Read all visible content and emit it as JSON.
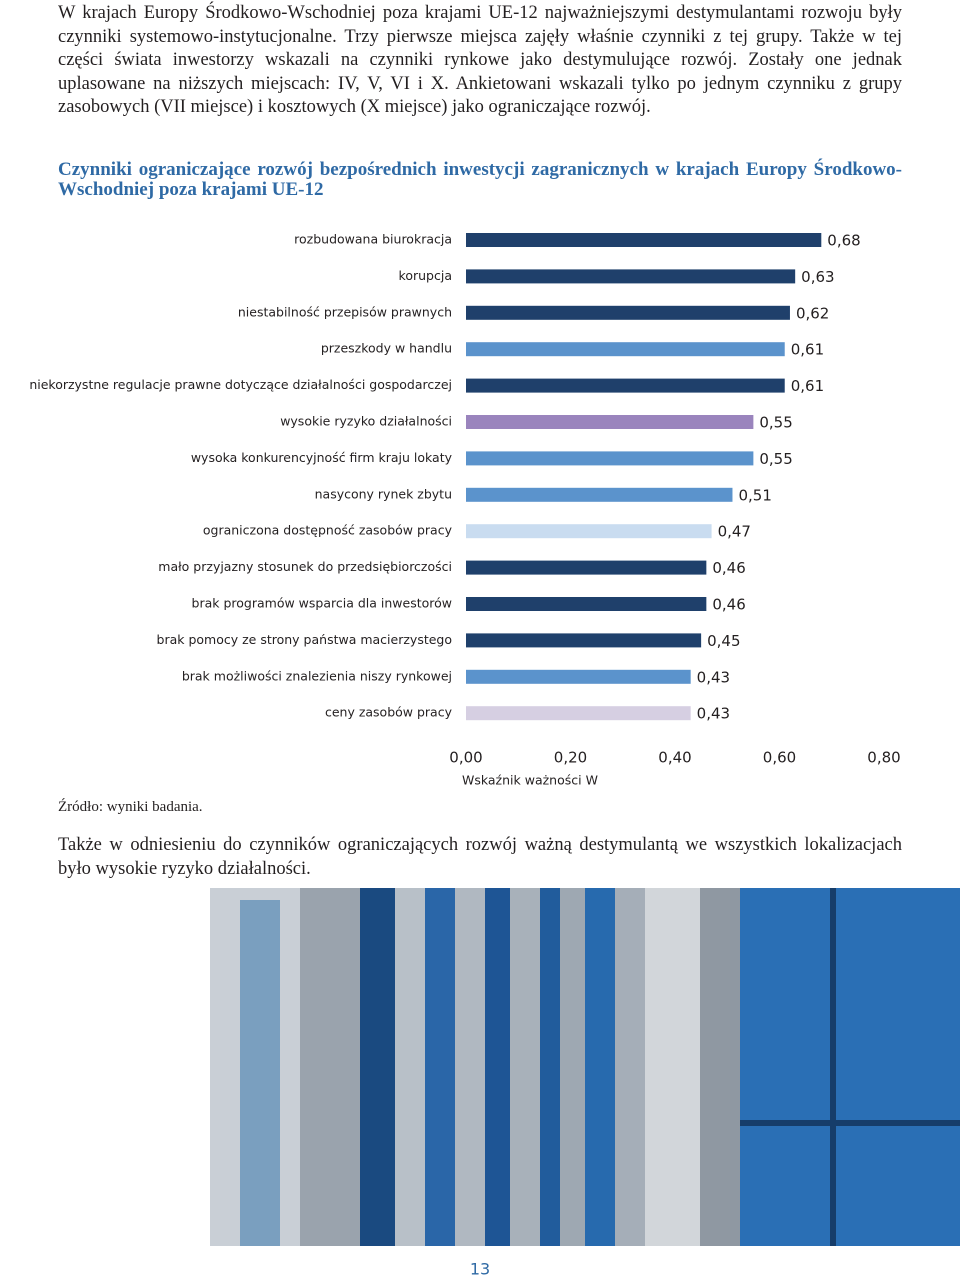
{
  "paragraph_1": "W krajach Europy Środkowo-Wschodniej poza krajami UE-12 najważniejszymi destymulantami rozwoju były czynniki systemowo-instytucjonalne. Trzy pierwsze miejsca zajęły właśnie czynniki z tej grupy. Także w tej części świata inwestorzy wskazali na czynniki rynkowe jako destymulujące rozwój. Zostały one jednak uplasowane na niższych miejscach: IV, V, VI i X. Ankietowani wskazali tylko po jednym czynniku z grupy zasobowych (VII miejsce) i kosztowych (X miejsce) jako ograniczające rozwój.",
  "chart_data": {
    "type": "hbar",
    "title": "Czynniki ograniczające rozwój bezpośrednich inwestycji zagranicznych w krajach Europy Środkowo-Wschodniej poza krajami UE-12",
    "categories": [
      "rozbudowana biurokracja",
      "korupcja",
      "niestabilność przepisów prawnych",
      "przeszkody w handlu",
      "niekorzystne regulacje prawne dotyczące działalności gospodarczej",
      "wysokie ryzyko działalności",
      "wysoka konkurencyjność firm kraju lokaty",
      "nasycony rynek zbytu",
      "ograniczona dostępność zasobów pracy",
      "mało przyjazny stosunek do przedsiębiorczości",
      "brak programów wsparcia dla inwestorów",
      "brak pomocy ze strony państwa macierzystego",
      "brak możliwości znalezienia niszy rynkowej",
      "ceny zasobów pracy"
    ],
    "values": [
      0.68,
      0.63,
      0.62,
      0.61,
      0.61,
      0.55,
      0.55,
      0.51,
      0.47,
      0.46,
      0.46,
      0.45,
      0.43,
      0.43
    ],
    "value_labels": [
      "0,68",
      "0,63",
      "0,62",
      "0,61",
      "0,61",
      "0,55",
      "0,55",
      "0,51",
      "0,47",
      "0,46",
      "0,46",
      "0,45",
      "0,43",
      "0,43"
    ],
    "colors": [
      "#1f406b",
      "#1f406b",
      "#1f406b",
      "#5b93cc",
      "#1f406b",
      "#9a84bd",
      "#5b93cc",
      "#5b93cc",
      "#c9dcf0",
      "#1f406b",
      "#1f406b",
      "#1f406b",
      "#5b93cc",
      "#d6cfe2"
    ],
    "xlim": [
      0,
      0.8
    ],
    "xticks": [
      {
        "value": 0,
        "label": "0,00"
      },
      {
        "value": 0.2,
        "label": "0,20"
      },
      {
        "value": 0.4,
        "label": "0,40"
      },
      {
        "value": 0.6,
        "label": "0,60"
      },
      {
        "value": 0.8,
        "label": "0,80"
      }
    ],
    "xlabel": "Wskaźnik ważności W"
  },
  "source": "Źródło: wyniki badania.",
  "paragraph_2": "Także w odniesieniu do czynników ograniczających rozwój ważną destymulantą we wszystkich lokalizacjach było wysokie ryzyko działalności.",
  "page_number": "13"
}
